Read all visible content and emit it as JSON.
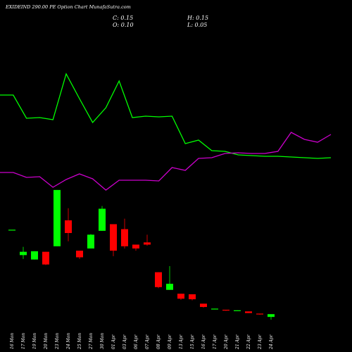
{
  "header": {
    "title": "EXIDEIND 290.00  PE Option  Chart MunafaSutra.com",
    "close": "C: 0.15",
    "open": "O: 0.10",
    "high": "H: 0.15",
    "low": "L: 0.05"
  },
  "colors": {
    "background": "#000000",
    "up": "#00ff00",
    "down": "#ff0000",
    "price_line": "#00ff00",
    "volume_line": "#cc00cc"
  },
  "chart_data": {
    "type": "candlestick",
    "grid": false,
    "ylim": [
      0,
      2.5
    ],
    "categories": [
      "16 Mon",
      "17 Mon",
      "19 Mon",
      "20 Mon",
      "23 Mon",
      "24 Mon",
      "25 Mon",
      "27 Mon",
      "30 Mon",
      "01 Apr",
      "03 Apr",
      "06 Apr",
      "07 Apr",
      "08 Apr",
      "09 Apr",
      "13 Apr",
      "15 Apr",
      "16 Apr",
      "17 Apr",
      "20 Apr",
      "21 Apr",
      "22 Apr",
      "23 Apr",
      "24 Apr"
    ],
    "candles": [
      {
        "o": 1.68,
        "h": 1.68,
        "l": 1.68,
        "c": 1.68
      },
      {
        "o": 1.22,
        "h": 1.37,
        "l": 1.15,
        "c": 1.28
      },
      {
        "o": 1.14,
        "h": 1.29,
        "l": 1.14,
        "c": 1.29
      },
      {
        "o": 1.28,
        "h": 1.28,
        "l": 1.04,
        "c": 1.05
      },
      {
        "o": 1.38,
        "h": 2.4,
        "l": 1.38,
        "c": 2.4
      },
      {
        "o": 1.85,
        "h": 2.07,
        "l": 1.47,
        "c": 1.62
      },
      {
        "o": 1.3,
        "h": 1.3,
        "l": 1.15,
        "c": 1.18
      },
      {
        "o": 1.34,
        "h": 1.6,
        "l": 1.34,
        "c": 1.59
      },
      {
        "o": 1.66,
        "h": 2.11,
        "l": 1.66,
        "c": 2.06
      },
      {
        "o": 1.78,
        "h": 1.78,
        "l": 1.2,
        "c": 1.3
      },
      {
        "o": 1.69,
        "h": 1.88,
        "l": 1.34,
        "c": 1.38
      },
      {
        "o": 1.41,
        "h": 1.41,
        "l": 1.3,
        "c": 1.34
      },
      {
        "o": 1.45,
        "h": 1.59,
        "l": 1.39,
        "c": 1.41
      },
      {
        "o": 0.91,
        "h": 0.91,
        "l": 0.62,
        "c": 0.64
      },
      {
        "o": 0.59,
        "h": 1.02,
        "l": 0.59,
        "c": 0.7
      },
      {
        "o": 0.52,
        "h": 0.52,
        "l": 0.41,
        "c": 0.43
      },
      {
        "o": 0.51,
        "h": 0.51,
        "l": 0.4,
        "c": 0.42
      },
      {
        "o": 0.34,
        "h": 0.34,
        "l": 0.27,
        "c": 0.28
      },
      {
        "o": 0.25,
        "h": 0.25,
        "l": 0.24,
        "c": 0.25
      },
      {
        "o": 0.23,
        "h": 0.23,
        "l": 0.21,
        "c": 0.22
      },
      {
        "o": 0.21,
        "h": 0.22,
        "l": 0.21,
        "c": 0.22
      },
      {
        "o": 0.2,
        "h": 0.2,
        "l": 0.17,
        "c": 0.17
      },
      {
        "o": 0.16,
        "h": 0.16,
        "l": 0.14,
        "c": 0.15
      },
      {
        "o": 0.1,
        "h": 0.15,
        "l": 0.05,
        "c": 0.15
      }
    ],
    "price_line": [
      405,
      405,
      372,
      373,
      370,
      435,
      400,
      366,
      387,
      425,
      373,
      375,
      374,
      375,
      336,
      341,
      326,
      325,
      320,
      319,
      318,
      318,
      317,
      316,
      315,
      316
    ],
    "volume_line": [
      295,
      295,
      288,
      289,
      274,
      285,
      293,
      286,
      270,
      284,
      284,
      284,
      283,
      302,
      298,
      315,
      316,
      322,
      323,
      322,
      322,
      325,
      352,
      342,
      338,
      349
    ]
  }
}
